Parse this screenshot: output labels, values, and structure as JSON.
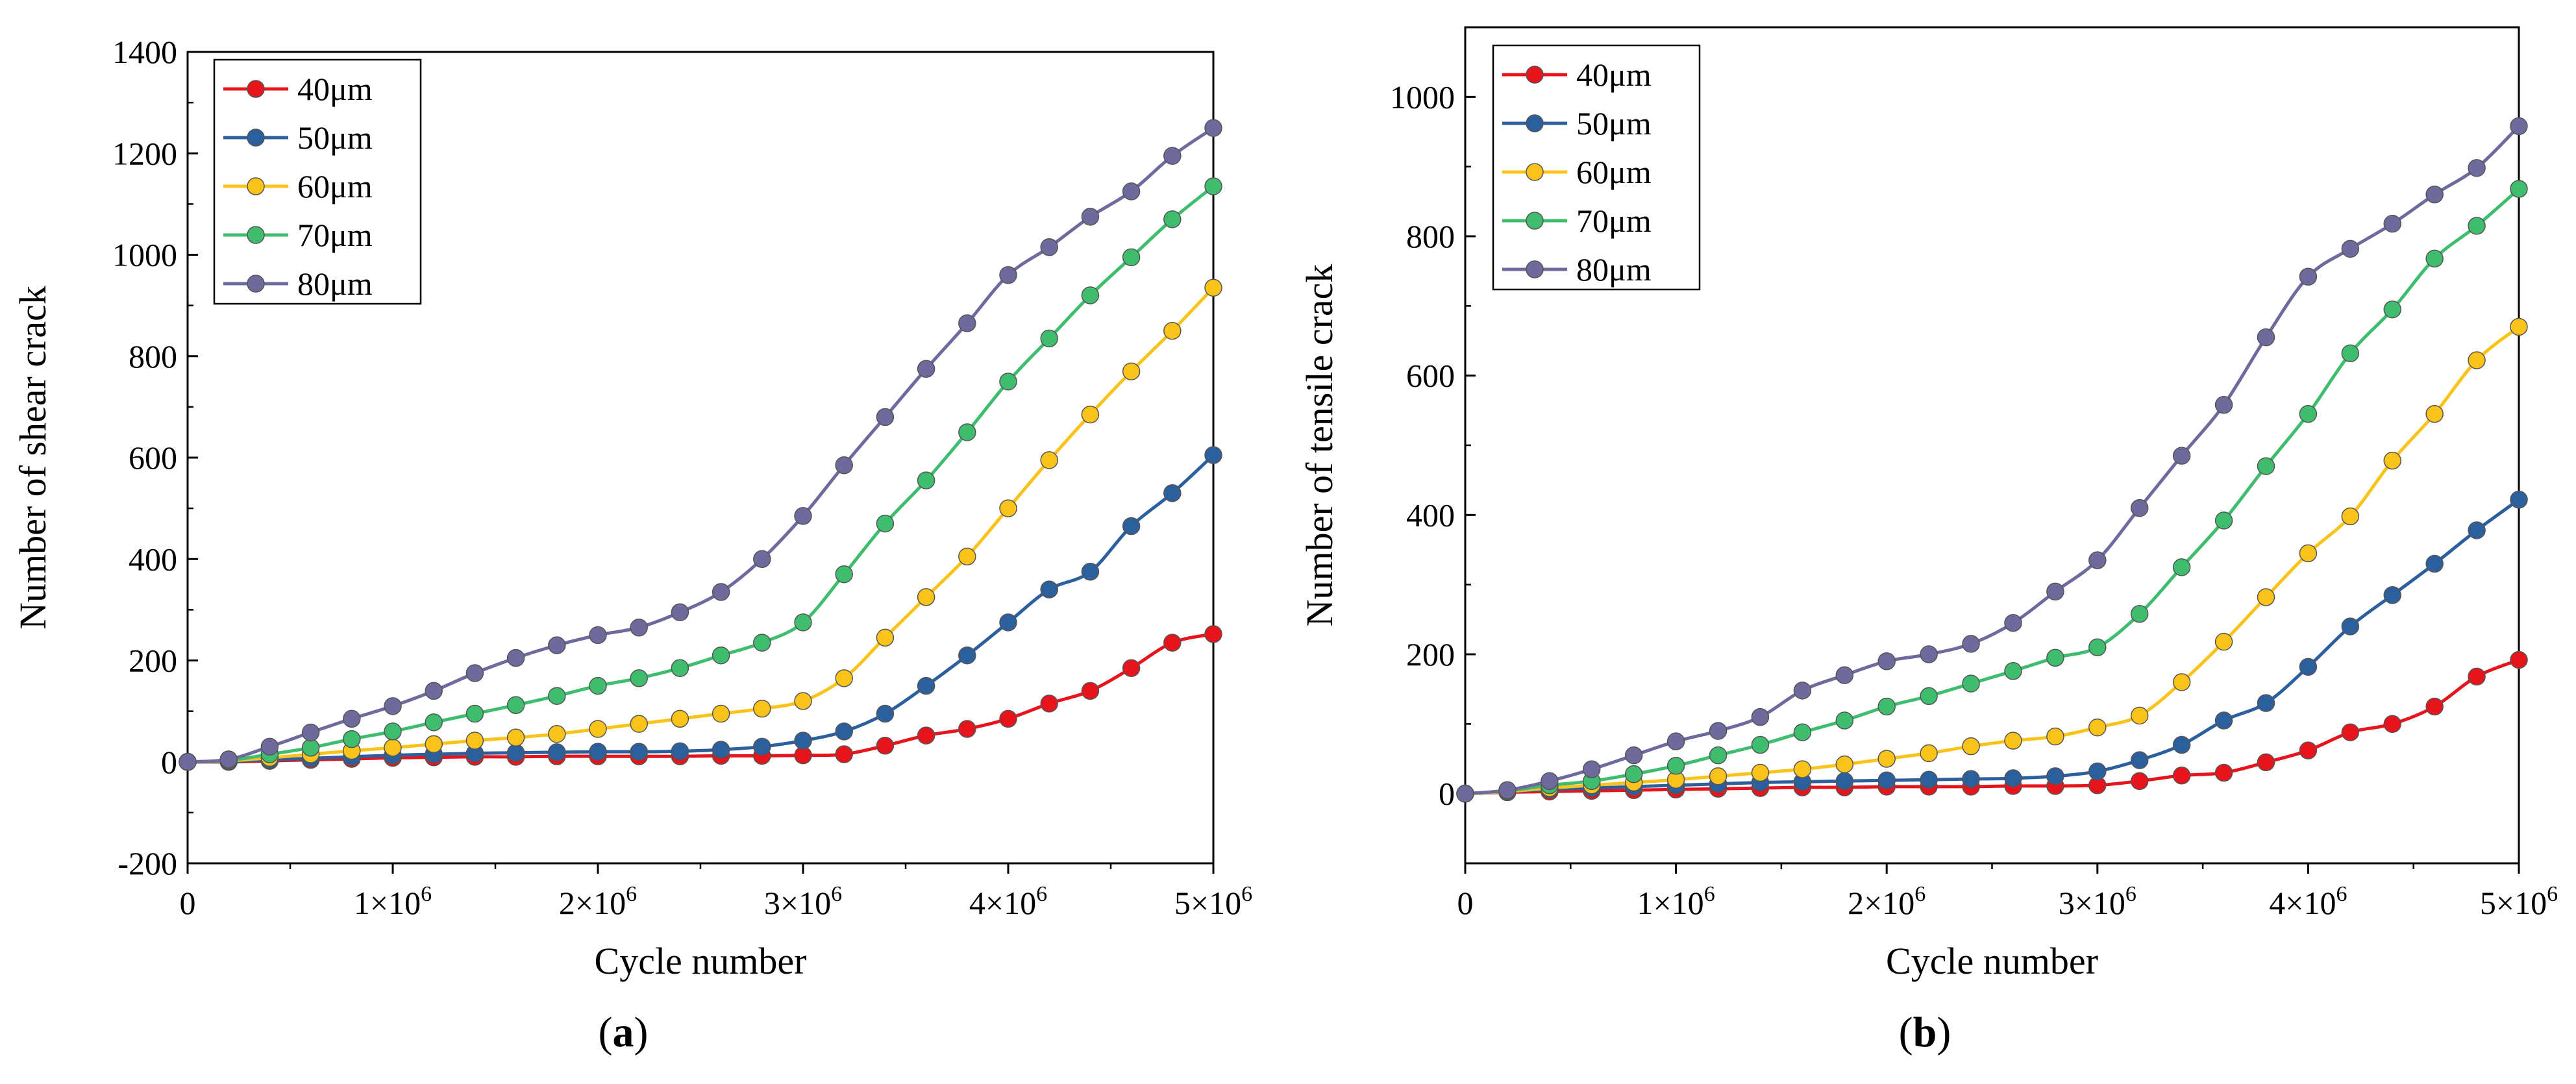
{
  "chart_data": [
    {
      "type": "line",
      "panel": "a",
      "panel_label_open": "(",
      "panel_label_letter": "a",
      "panel_label_close": ")",
      "xlabel": "Cycle number",
      "ylabel": "Number of shear crack",
      "xlim": [
        0,
        5000000
      ],
      "ylim": [
        -200,
        1400
      ],
      "yticks": [
        -200,
        0,
        200,
        400,
        600,
        800,
        1000,
        1200,
        1400
      ],
      "xticks": [
        {
          "value": 0,
          "base": "0",
          "exp": ""
        },
        {
          "value": 1000000,
          "base": "1×10",
          "exp": "6"
        },
        {
          "value": 2000000,
          "base": "2×10",
          "exp": "6"
        },
        {
          "value": 3000000,
          "base": "3×10",
          "exp": "6"
        },
        {
          "value": 4000000,
          "base": "4×10",
          "exp": "6"
        },
        {
          "value": 5000000,
          "base": "5×10",
          "exp": "6"
        }
      ],
      "legend_position": "top-left",
      "x": [
        0,
        200000,
        400000,
        600000,
        800000,
        1000000,
        1200000,
        1400000,
        1600000,
        1800000,
        2000000,
        2200000,
        2400000,
        2600000,
        2800000,
        3000000,
        3200000,
        3400000,
        3600000,
        3800000,
        4000000,
        4200000,
        4400000,
        4600000,
        4800000,
        5000000
      ],
      "series": [
        {
          "name": "40μm",
          "color": "#e8141c",
          "values": [
            0,
            0,
            2,
            4,
            6,
            8,
            9,
            10,
            10,
            11,
            11,
            11,
            11,
            12,
            12,
            13,
            15,
            32,
            52,
            65,
            85,
            115,
            140,
            185,
            235,
            252
          ]
        },
        {
          "name": "50μm",
          "color": "#2c5f9e",
          "values": [
            0,
            1,
            4,
            7,
            10,
            13,
            15,
            17,
            18,
            19,
            20,
            20,
            21,
            24,
            30,
            42,
            60,
            95,
            150,
            210,
            275,
            340,
            375,
            465,
            530,
            605
          ]
        },
        {
          "name": "60μm",
          "color": "#f9c31a",
          "values": [
            0,
            2,
            8,
            15,
            22,
            28,
            35,
            42,
            48,
            55,
            65,
            75,
            85,
            95,
            105,
            120,
            165,
            245,
            325,
            405,
            500,
            595,
            685,
            770,
            850,
            935
          ]
        },
        {
          "name": "70μm",
          "color": "#3fbd6f",
          "values": [
            0,
            3,
            15,
            28,
            45,
            60,
            78,
            95,
            112,
            130,
            150,
            165,
            185,
            210,
            235,
            275,
            370,
            470,
            555,
            650,
            750,
            835,
            920,
            995,
            1070,
            1135
          ]
        },
        {
          "name": "80μm",
          "color": "#6f6a9e",
          "values": [
            0,
            5,
            30,
            58,
            85,
            110,
            140,
            175,
            205,
            230,
            250,
            265,
            295,
            335,
            400,
            485,
            585,
            680,
            775,
            865,
            960,
            1015,
            1075,
            1125,
            1195,
            1250
          ]
        }
      ]
    },
    {
      "type": "line",
      "panel": "b",
      "panel_label_open": "(",
      "panel_label_letter": "b",
      "panel_label_close": ")",
      "xlabel": "Cycle number",
      "ylabel": "Number of tensile crack",
      "xlim": [
        0,
        5000000
      ],
      "ylim": [
        -100,
        1100
      ],
      "yticks": [
        0,
        200,
        400,
        600,
        800,
        1000
      ],
      "xticks": [
        {
          "value": 0,
          "base": "0",
          "exp": ""
        },
        {
          "value": 1000000,
          "base": "1×10",
          "exp": "6"
        },
        {
          "value": 2000000,
          "base": "2×10",
          "exp": "6"
        },
        {
          "value": 3000000,
          "base": "3×10",
          "exp": "6"
        },
        {
          "value": 4000000,
          "base": "4×10",
          "exp": "6"
        },
        {
          "value": 5000000,
          "base": "5×10",
          "exp": "6"
        }
      ],
      "legend_position": "top-left",
      "x": [
        0,
        200000,
        400000,
        600000,
        800000,
        1000000,
        1200000,
        1400000,
        1600000,
        1800000,
        2000000,
        2200000,
        2400000,
        2600000,
        2800000,
        3000000,
        3200000,
        3400000,
        3600000,
        3800000,
        4000000,
        4200000,
        4400000,
        4600000,
        4800000,
        5000000
      ],
      "series": [
        {
          "name": "40μm",
          "color": "#e8141c",
          "values": [
            0,
            2,
            3,
            4,
            5,
            6,
            7,
            8,
            9,
            9,
            10,
            10,
            10,
            11,
            11,
            12,
            18,
            26,
            30,
            45,
            62,
            88,
            100,
            125,
            168,
            192
          ]
        },
        {
          "name": "50μm",
          "color": "#2c5f9e",
          "values": [
            0,
            3,
            6,
            8,
            10,
            12,
            14,
            16,
            17,
            18,
            19,
            20,
            21,
            22,
            25,
            32,
            48,
            70,
            105,
            130,
            182,
            240,
            285,
            330,
            378,
            422
          ]
        },
        {
          "name": "60μm",
          "color": "#f9c31a",
          "values": [
            0,
            3,
            8,
            12,
            16,
            20,
            25,
            30,
            35,
            42,
            50,
            58,
            68,
            76,
            82,
            95,
            112,
            160,
            218,
            282,
            345,
            398,
            478,
            545,
            622,
            670
          ]
        },
        {
          "name": "70μm",
          "color": "#3fbd6f",
          "values": [
            0,
            4,
            12,
            18,
            28,
            40,
            55,
            70,
            88,
            105,
            125,
            140,
            158,
            176,
            195,
            210,
            258,
            325,
            392,
            470,
            545,
            632,
            695,
            768,
            815,
            868
          ]
        },
        {
          "name": "80μm",
          "color": "#6f6a9e",
          "values": [
            0,
            5,
            18,
            35,
            55,
            75,
            90,
            110,
            148,
            170,
            190,
            200,
            215,
            245,
            290,
            335,
            410,
            485,
            558,
            655,
            742,
            782,
            818,
            860,
            898,
            958
          ]
        }
      ]
    }
  ]
}
